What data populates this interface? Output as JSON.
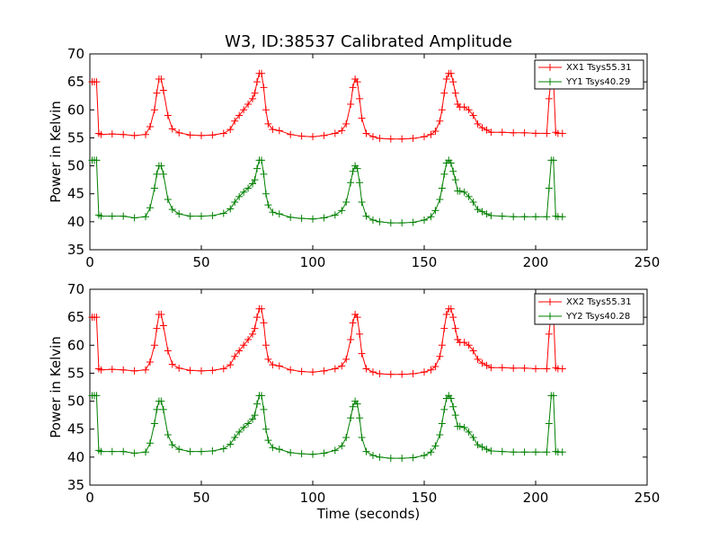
{
  "chart_data": [
    {
      "type": "line",
      "title": "W3, ID:38537 Calibrated Amplitude",
      "xlabel": "",
      "ylabel": "Power in Kelvin",
      "xlim": [
        0,
        250
      ],
      "ylim": [
        35,
        70
      ],
      "xticks": [
        "0",
        "50",
        "100",
        "150",
        "200",
        "250"
      ],
      "yticks": [
        "35",
        "40",
        "45",
        "50",
        "55",
        "60",
        "65",
        "70"
      ],
      "grid": false,
      "legend_placement": "top-right",
      "series": [
        {
          "name": "XX1 Tsys55.31",
          "color": "#ff0000",
          "marker": "plus",
          "x": [
            1,
            2,
            3,
            4,
            5,
            10,
            15,
            20,
            25,
            27,
            29,
            30,
            31,
            32,
            33,
            35,
            37,
            40,
            45,
            50,
            55,
            60,
            63,
            65,
            67,
            69,
            71,
            73,
            74,
            75,
            76,
            77,
            78,
            79,
            80,
            82,
            85,
            90,
            95,
            100,
            105,
            110,
            113,
            115,
            117,
            118,
            119,
            120,
            121,
            122,
            124,
            127,
            130,
            135,
            140,
            145,
            150,
            153,
            155,
            157,
            158,
            159,
            160,
            161,
            162,
            163,
            164,
            165,
            166,
            168,
            170,
            172,
            174,
            176,
            178,
            180,
            185,
            190,
            195,
            200,
            205,
            206,
            207,
            208,
            209,
            210,
            212
          ],
          "y": [
            65,
            65,
            65,
            55.8,
            55.6,
            55.7,
            55.6,
            55.4,
            55.6,
            57,
            60,
            63,
            65.5,
            65.5,
            63.5,
            59,
            56.6,
            55.9,
            55.5,
            55.4,
            55.5,
            55.8,
            56.5,
            58,
            59,
            60,
            61,
            62,
            63,
            65,
            66.5,
            66.5,
            64,
            60,
            57.5,
            56.5,
            56.3,
            55.6,
            55.3,
            55.2,
            55.4,
            55.8,
            56.3,
            57.5,
            61,
            64,
            65.5,
            65,
            62,
            58.5,
            55.8,
            55.2,
            54.9,
            54.8,
            54.8,
            54.9,
            55.2,
            55.6,
            56.2,
            58,
            60,
            63,
            65.5,
            66.5,
            66.5,
            65,
            63,
            61,
            60.5,
            60.5,
            60,
            59,
            57.5,
            56.8,
            56.4,
            56,
            56,
            55.9,
            55.9,
            55.8,
            55.8,
            62,
            66,
            65.5,
            56,
            55.8,
            55.8
          ]
        },
        {
          "name": "YY1 Tsys40.29",
          "color": "#008000",
          "marker": "plus",
          "x": [
            1,
            2,
            3,
            4,
            5,
            10,
            15,
            20,
            25,
            27,
            29,
            30,
            31,
            32,
            33,
            35,
            37,
            40,
            45,
            50,
            55,
            60,
            63,
            65,
            67,
            69,
            71,
            73,
            74,
            75,
            76,
            77,
            78,
            79,
            80,
            82,
            85,
            90,
            95,
            100,
            105,
            110,
            113,
            115,
            117,
            118,
            119,
            120,
            121,
            122,
            124,
            127,
            130,
            135,
            140,
            145,
            150,
            153,
            155,
            157,
            158,
            159,
            160,
            161,
            162,
            163,
            164,
            165,
            166,
            168,
            170,
            172,
            174,
            176,
            178,
            180,
            185,
            190,
            195,
            200,
            205,
            206,
            207,
            208,
            209,
            210,
            212
          ],
          "y": [
            51,
            51,
            51,
            41.2,
            41,
            41,
            41,
            40.7,
            40.9,
            42.5,
            46,
            48.5,
            50,
            50,
            48.5,
            44,
            42.2,
            41.4,
            41,
            41,
            41.1,
            41.5,
            42.3,
            43.5,
            44.5,
            45.3,
            46,
            46.8,
            47.5,
            49.5,
            51,
            51,
            48.5,
            45,
            43,
            41.7,
            41.4,
            40.8,
            40.6,
            40.5,
            40.7,
            41.2,
            42,
            43.5,
            47,
            49,
            50,
            49.5,
            47,
            43.5,
            41,
            40.3,
            40,
            39.8,
            39.8,
            39.9,
            40.3,
            40.9,
            42,
            44,
            46,
            48.5,
            50.5,
            51,
            50.5,
            49,
            47.5,
            45.5,
            45.5,
            45.3,
            44.5,
            43.5,
            42.2,
            41.8,
            41.4,
            41.1,
            41,
            40.9,
            40.9,
            40.9,
            40.9,
            46,
            51,
            51,
            41,
            40.9,
            40.9
          ]
        }
      ]
    },
    {
      "type": "line",
      "title": "",
      "xlabel": "Time (seconds)",
      "ylabel": "Power in Kelvin",
      "xlim": [
        0,
        250
      ],
      "ylim": [
        35,
        70
      ],
      "xticks": [
        "0",
        "50",
        "100",
        "150",
        "200",
        "250"
      ],
      "yticks": [
        "35",
        "40",
        "45",
        "50",
        "55",
        "60",
        "65",
        "70"
      ],
      "grid": false,
      "legend_placement": "top-right",
      "series": [
        {
          "name": "XX2 Tsys55.31",
          "color": "#ff0000",
          "marker": "plus",
          "x": [
            1,
            2,
            3,
            4,
            5,
            10,
            15,
            20,
            25,
            27,
            29,
            30,
            31,
            32,
            33,
            35,
            37,
            40,
            45,
            50,
            55,
            60,
            63,
            65,
            67,
            69,
            71,
            73,
            74,
            75,
            76,
            77,
            78,
            79,
            80,
            82,
            85,
            90,
            95,
            100,
            105,
            110,
            113,
            115,
            117,
            118,
            119,
            120,
            121,
            122,
            124,
            127,
            130,
            135,
            140,
            145,
            150,
            153,
            155,
            157,
            158,
            159,
            160,
            161,
            162,
            163,
            164,
            165,
            166,
            168,
            170,
            172,
            174,
            176,
            178,
            180,
            185,
            190,
            195,
            200,
            205,
            206,
            207,
            208,
            209,
            210,
            212
          ],
          "y": [
            65,
            65,
            65,
            55.8,
            55.6,
            55.7,
            55.6,
            55.4,
            55.6,
            57,
            60,
            63,
            65.5,
            65.5,
            63.5,
            59,
            56.6,
            55.9,
            55.5,
            55.4,
            55.5,
            55.8,
            56.5,
            58,
            59,
            60,
            61,
            62,
            63,
            65,
            66.5,
            66.5,
            64,
            60,
            57.5,
            56.5,
            56.3,
            55.6,
            55.3,
            55.2,
            55.4,
            55.8,
            56.3,
            57.5,
            61,
            64,
            65.5,
            65,
            62,
            58.5,
            55.8,
            55.2,
            54.9,
            54.8,
            54.8,
            54.9,
            55.2,
            55.6,
            56.2,
            58,
            60,
            63,
            65.5,
            66.5,
            66.5,
            65,
            63,
            61,
            60.5,
            60.5,
            60,
            59,
            57.5,
            56.8,
            56.4,
            56,
            56,
            55.9,
            55.9,
            55.8,
            55.8,
            62,
            66,
            65.5,
            56,
            55.8,
            55.8
          ]
        },
        {
          "name": "YY2 Tsys40.28",
          "color": "#008000",
          "marker": "plus",
          "x": [
            1,
            2,
            3,
            4,
            5,
            10,
            15,
            20,
            25,
            27,
            29,
            30,
            31,
            32,
            33,
            35,
            37,
            40,
            45,
            50,
            55,
            60,
            63,
            65,
            67,
            69,
            71,
            73,
            74,
            75,
            76,
            77,
            78,
            79,
            80,
            82,
            85,
            90,
            95,
            100,
            105,
            110,
            113,
            115,
            117,
            118,
            119,
            120,
            121,
            122,
            124,
            127,
            130,
            135,
            140,
            145,
            150,
            153,
            155,
            157,
            158,
            159,
            160,
            161,
            162,
            163,
            164,
            165,
            166,
            168,
            170,
            172,
            174,
            176,
            178,
            180,
            185,
            190,
            195,
            200,
            205,
            206,
            207,
            208,
            209,
            210,
            212
          ],
          "y": [
            51,
            51,
            51,
            41.2,
            41,
            41,
            41,
            40.7,
            40.9,
            42.5,
            46,
            48.5,
            50,
            50,
            48.5,
            44,
            42.2,
            41.4,
            41,
            41,
            41.1,
            41.5,
            42.3,
            43.5,
            44.5,
            45.3,
            46,
            46.8,
            47.5,
            49.5,
            51,
            51,
            48.5,
            45,
            43,
            41.7,
            41.4,
            40.8,
            40.6,
            40.5,
            40.7,
            41.2,
            42,
            43.5,
            47,
            49,
            50,
            49.5,
            47,
            43.5,
            41,
            40.3,
            40,
            39.8,
            39.8,
            39.9,
            40.3,
            40.9,
            42,
            44,
            46,
            48.5,
            50.5,
            51,
            50.5,
            49,
            47.5,
            45.5,
            45.5,
            45.3,
            44.5,
            43.5,
            42.2,
            41.8,
            41.4,
            41.1,
            41,
            40.9,
            40.9,
            40.9,
            40.9,
            46,
            51,
            51,
            41,
            40.9,
            40.9
          ]
        }
      ]
    }
  ]
}
